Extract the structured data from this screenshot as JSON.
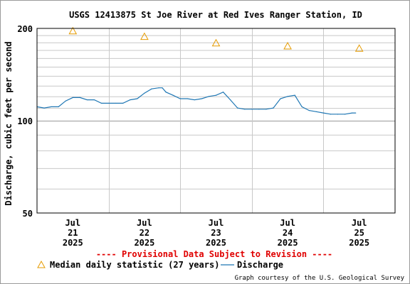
{
  "chart_data": {
    "type": "line",
    "title": "USGS 12413875 St Joe River at Red Ives Ranger Station, ID",
    "ylabel": "Discharge, cubic feet per second",
    "y_scale": "log",
    "ylim": [
      50,
      200
    ],
    "y_ticks": [
      "200",
      "100",
      "50"
    ],
    "x_ticks": [
      {
        "month": "Jul",
        "day": "21",
        "year": "2025"
      },
      {
        "month": "Jul",
        "day": "22",
        "year": "2025"
      },
      {
        "month": "Jul",
        "day": "23",
        "year": "2025"
      },
      {
        "month": "Jul",
        "day": "24",
        "year": "2025"
      },
      {
        "month": "Jul",
        "day": "25",
        "year": "2025"
      }
    ],
    "grid": true,
    "legend_placement": "bottom",
    "provisional_note": "---- Provisional Data Subject to Revision ----",
    "credit": "Graph courtesy of the U.S. Geological Survey",
    "series": [
      {
        "name": "Discharge",
        "kind": "line",
        "color": "#1f77b4",
        "x": [
          20.5,
          20.6,
          20.7,
          20.8,
          20.9,
          21.0,
          21.1,
          21.2,
          21.3,
          21.4,
          21.5,
          21.6,
          21.7,
          21.8,
          21.9,
          22.0,
          22.1,
          22.2,
          22.25,
          22.3,
          22.4,
          22.5,
          22.6,
          22.7,
          22.8,
          22.9,
          23.0,
          23.1,
          23.2,
          23.3,
          23.4,
          23.5,
          23.6,
          23.7,
          23.8,
          23.9,
          24.0,
          24.1,
          24.2,
          24.3,
          24.4,
          24.5,
          24.6,
          24.7,
          24.8,
          24.9,
          24.95
        ],
        "values": [
          111,
          110,
          111,
          111,
          116,
          119,
          119,
          117,
          117,
          114,
          114,
          114,
          114,
          117,
          118,
          123,
          127,
          128,
          128,
          124,
          121,
          118,
          118,
          117,
          118,
          120,
          121,
          124,
          117,
          110,
          109,
          109,
          109,
          109,
          110,
          118,
          120,
          121,
          111,
          108,
          107,
          106,
          105,
          105,
          105,
          106,
          106
        ]
      },
      {
        "name": "Median daily statistic (27 years)",
        "kind": "marker",
        "marker": "triangle",
        "color": "#e69b00",
        "x": [
          21,
          22,
          23,
          24,
          25
        ],
        "values": [
          196,
          188,
          179,
          175,
          172
        ]
      }
    ]
  }
}
